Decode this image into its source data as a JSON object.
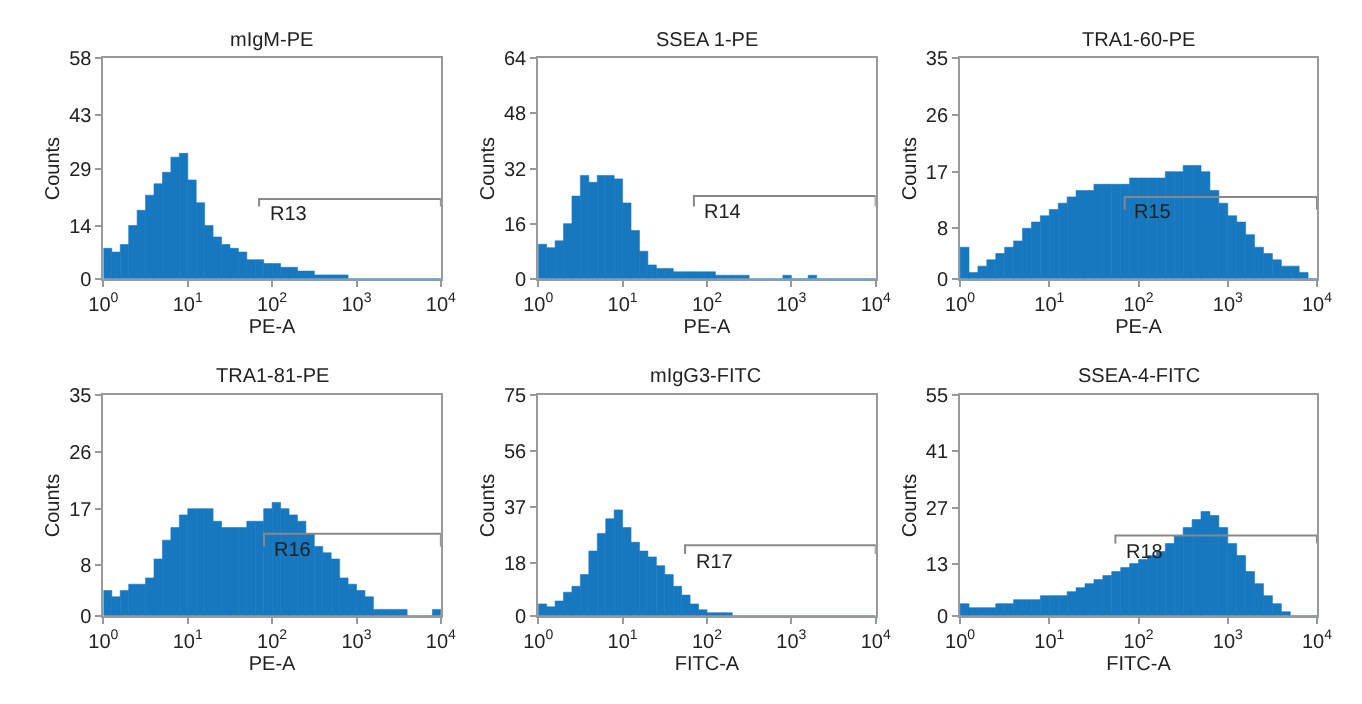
{
  "chart_data": [
    {
      "type": "histogram",
      "title": "mIgM-PE",
      "xlabel": "PE-A",
      "ylabel": "Counts",
      "color": "#1777bf",
      "log": "x",
      "xlim": [
        1,
        10000
      ],
      "xticks": [
        {
          "value": 1,
          "label": "10$^{0}$"
        },
        {
          "value": 10,
          "label": "10$^{1}$"
        },
        {
          "value": 100,
          "label": "10$^{2}$"
        },
        {
          "value": 1000,
          "label": "10$^{3}$"
        },
        {
          "value": 10000,
          "label": "10$^{4}$"
        }
      ],
      "ylim": [
        0,
        58
      ],
      "yticks": [
        0,
        14,
        29,
        43,
        58
      ],
      "bins": [
        1,
        1.259,
        1.585,
        1.995,
        2.512,
        3.162,
        3.981,
        5.012,
        6.31,
        7.943,
        10,
        12.59,
        15.85,
        19.95,
        25.12,
        31.62,
        39.81,
        50.12,
        63.1,
        79.43,
        100,
        125.9,
        158.5,
        199.5,
        251.2,
        316.2,
        398.1,
        501.2,
        631,
        794.3,
        1000,
        1259,
        1585,
        1995,
        2512,
        3162,
        3981,
        5012,
        6310,
        7943,
        10000
      ],
      "values": [
        8,
        7,
        9,
        14,
        18,
        22,
        25,
        28,
        32,
        33,
        26,
        20,
        14,
        11,
        9,
        8,
        7,
        5,
        5,
        4,
        4,
        3,
        3,
        2,
        2,
        1,
        1,
        1,
        1,
        0,
        0,
        0,
        0,
        0,
        0,
        0,
        0,
        0,
        0,
        0
      ],
      "series": [
        {
          "type": "line",
          "name": "R13",
          "color": "#888888",
          "x": [
            70,
            70,
            10000,
            10000
          ],
          "values": [
            19,
            21,
            21,
            19
          ]
        }
      ]
    },
    {
      "type": "histogram",
      "title": "SSEA 1-PE",
      "xlabel": "PE-A",
      "ylabel": "Counts",
      "color": "#1777bf",
      "log": "x",
      "xlim": [
        1,
        10000
      ],
      "xticks": [
        {
          "value": 1,
          "label": "10$^{0}$"
        },
        {
          "value": 10,
          "label": "10$^{1}$"
        },
        {
          "value": 100,
          "label": "10$^{2}$"
        },
        {
          "value": 1000,
          "label": "10$^{3}$"
        },
        {
          "value": 10000,
          "label": "10$^{4}$"
        }
      ],
      "ylim": [
        0,
        64
      ],
      "yticks": [
        0,
        16,
        32,
        48,
        64
      ],
      "bins": [
        1,
        1.259,
        1.585,
        1.995,
        2.512,
        3.162,
        3.981,
        5.012,
        6.31,
        7.943,
        10,
        12.59,
        15.85,
        19.95,
        25.12,
        31.62,
        39.81,
        50.12,
        63.1,
        79.43,
        100,
        125.9,
        158.5,
        199.5,
        251.2,
        316.2,
        398.1,
        501.2,
        631,
        794.3,
        1000,
        1259,
        1585,
        1995,
        2512,
        3162,
        3981,
        5012,
        6310,
        7943,
        10000
      ],
      "values": [
        10,
        9,
        11,
        16,
        24,
        30,
        28,
        30,
        30,
        29,
        22,
        14,
        8,
        4,
        3,
        3,
        2,
        2,
        2,
        2,
        2,
        1,
        1,
        1,
        1,
        0,
        0,
        0,
        0,
        1,
        0,
        0,
        1,
        0,
        0,
        0,
        0,
        0,
        0,
        0
      ],
      "series": [
        {
          "type": "line",
          "name": "R14",
          "color": "#888888",
          "x": [
            70,
            70,
            10000,
            10000
          ],
          "values": [
            21,
            24,
            24,
            21
          ]
        }
      ]
    },
    {
      "type": "histogram",
      "title": "TRA1-60-PE",
      "xlabel": "PE-A",
      "ylabel": "Counts",
      "color": "#1777bf",
      "log": "x",
      "xlim": [
        1,
        10000
      ],
      "xticks": [
        {
          "value": 1,
          "label": "10$^{0}$"
        },
        {
          "value": 10,
          "label": "10$^{1}$"
        },
        {
          "value": 100,
          "label": "10$^{2}$"
        },
        {
          "value": 1000,
          "label": "10$^{3}$"
        },
        {
          "value": 10000,
          "label": "10$^{4}$"
        }
      ],
      "ylim": [
        0,
        35
      ],
      "yticks": [
        0,
        8,
        17,
        26,
        35
      ],
      "bins": [
        1,
        1.259,
        1.585,
        1.995,
        2.512,
        3.162,
        3.981,
        5.012,
        6.31,
        7.943,
        10,
        12.59,
        15.85,
        19.95,
        25.12,
        31.62,
        39.81,
        50.12,
        63.1,
        79.43,
        100,
        125.9,
        158.5,
        199.5,
        251.2,
        316.2,
        398.1,
        501.2,
        631,
        794.3,
        1000,
        1259,
        1585,
        1995,
        2512,
        3162,
        3981,
        5012,
        6310,
        7943,
        10000
      ],
      "values": [
        5,
        1,
        2,
        3,
        4,
        5,
        6,
        8,
        9,
        10,
        11,
        12,
        13,
        14,
        14,
        15,
        15,
        15,
        15,
        16,
        16,
        16,
        16,
        17,
        17,
        18,
        18,
        17,
        14,
        12,
        10,
        9,
        7,
        5,
        4,
        3,
        2,
        2,
        1,
        0
      ],
      "series": [
        {
          "type": "line",
          "name": "R15",
          "color": "#888888",
          "x": [
            70,
            70,
            10000,
            10000
          ],
          "values": [
            11,
            13,
            13,
            11
          ]
        }
      ]
    },
    {
      "type": "histogram",
      "title": "TRA1-81-PE",
      "xlabel": "PE-A",
      "ylabel": "Counts",
      "color": "#1777bf",
      "log": "x",
      "xlim": [
        1,
        10000
      ],
      "xticks": [
        {
          "value": 1,
          "label": "10$^{0}$"
        },
        {
          "value": 10,
          "label": "10$^{1}$"
        },
        {
          "value": 100,
          "label": "10$^{2}$"
        },
        {
          "value": 1000,
          "label": "10$^{3}$"
        },
        {
          "value": 10000,
          "label": "10$^{4}$"
        }
      ],
      "ylim": [
        0,
        35
      ],
      "yticks": [
        0,
        8,
        17,
        26,
        35
      ],
      "bins": [
        1,
        1.259,
        1.585,
        1.995,
        2.512,
        3.162,
        3.981,
        5.012,
        6.31,
        7.943,
        10,
        12.59,
        15.85,
        19.95,
        25.12,
        31.62,
        39.81,
        50.12,
        63.1,
        79.43,
        100,
        125.9,
        158.5,
        199.5,
        251.2,
        316.2,
        398.1,
        501.2,
        631,
        794.3,
        1000,
        1259,
        1585,
        1995,
        2512,
        3162,
        3981,
        5012,
        6310,
        7943,
        10000
      ],
      "values": [
        4,
        3,
        4,
        5,
        5,
        6,
        9,
        12,
        14,
        16,
        17,
        17,
        17,
        15,
        14,
        14,
        14,
        15,
        15,
        17,
        18,
        17,
        16,
        15,
        13,
        11,
        10,
        9,
        6,
        5,
        4,
        3,
        1,
        1,
        1,
        1,
        0,
        0,
        0,
        1
      ],
      "series": [
        {
          "type": "line",
          "name": "R16",
          "color": "#888888",
          "x": [
            80,
            80,
            10000,
            10000
          ],
          "values": [
            11,
            13,
            13,
            11
          ]
        }
      ]
    },
    {
      "type": "histogram",
      "title": "mIgG3-FITC",
      "xlabel": "FITC-A",
      "ylabel": "Counts",
      "color": "#1777bf",
      "log": "x",
      "xlim": [
        1,
        10000
      ],
      "xticks": [
        {
          "value": 1,
          "label": "10$^{0}$"
        },
        {
          "value": 10,
          "label": "10$^{1}$"
        },
        {
          "value": 100,
          "label": "10$^{2}$"
        },
        {
          "value": 1000,
          "label": "10$^{3}$"
        },
        {
          "value": 10000,
          "label": "10$^{4}$"
        }
      ],
      "ylim": [
        0,
        75
      ],
      "yticks": [
        0,
        18,
        37,
        56,
        75
      ],
      "bins": [
        1,
        1.259,
        1.585,
        1.995,
        2.512,
        3.162,
        3.981,
        5.012,
        6.31,
        7.943,
        10,
        12.59,
        15.85,
        19.95,
        25.12,
        31.62,
        39.81,
        50.12,
        63.1,
        79.43,
        100,
        125.9,
        158.5,
        199.5,
        251.2,
        316.2,
        398.1,
        501.2,
        631,
        794.3,
        1000,
        1259,
        1585,
        1995,
        2512,
        3162,
        3981,
        5012,
        6310,
        7943,
        10000
      ],
      "values": [
        4,
        3,
        5,
        8,
        10,
        14,
        22,
        28,
        33,
        36,
        30,
        25,
        22,
        20,
        17,
        14,
        10,
        7,
        4,
        2,
        1,
        1,
        1,
        0,
        0,
        0,
        0,
        0,
        0,
        0,
        0,
        0,
        0,
        0,
        0,
        0,
        0,
        0,
        0,
        0
      ],
      "series": [
        {
          "type": "line",
          "name": "R17",
          "color": "#888888",
          "x": [
            55,
            55,
            10000,
            10000
          ],
          "values": [
            21,
            24,
            24,
            21
          ]
        }
      ]
    },
    {
      "type": "histogram",
      "title": "SSEA-4-FITC",
      "xlabel": "FITC-A",
      "ylabel": "Counts",
      "color": "#1777bf",
      "log": "x",
      "xlim": [
        1,
        10000
      ],
      "xticks": [
        {
          "value": 1,
          "label": "10$^{0}$"
        },
        {
          "value": 10,
          "label": "10$^{1}$"
        },
        {
          "value": 100,
          "label": "10$^{2}$"
        },
        {
          "value": 1000,
          "label": "10$^{3}$"
        },
        {
          "value": 10000,
          "label": "10$^{4}$"
        }
      ],
      "ylim": [
        0,
        55
      ],
      "yticks": [
        0,
        13,
        27,
        41,
        55
      ],
      "bins": [
        1,
        1.259,
        1.585,
        1.995,
        2.512,
        3.162,
        3.981,
        5.012,
        6.31,
        7.943,
        10,
        12.59,
        15.85,
        19.95,
        25.12,
        31.62,
        39.81,
        50.12,
        63.1,
        79.43,
        100,
        125.9,
        158.5,
        199.5,
        251.2,
        316.2,
        398.1,
        501.2,
        631,
        794.3,
        1000,
        1259,
        1585,
        1995,
        2512,
        3162,
        3981,
        5012,
        6310,
        7943,
        10000
      ],
      "values": [
        3,
        2,
        2,
        2,
        3,
        3,
        4,
        4,
        4,
        5,
        5,
        5,
        6,
        7,
        8,
        9,
        10,
        11,
        12,
        13,
        14,
        15,
        16,
        18,
        20,
        22,
        24,
        26,
        25,
        22,
        18,
        15,
        11,
        8,
        5,
        3,
        1,
        0,
        0,
        0
      ],
      "series": [
        {
          "type": "line",
          "name": "R18",
          "color": "#888888",
          "x": [
            55,
            55,
            10000,
            10000
          ],
          "values": [
            18,
            20,
            20,
            18
          ]
        }
      ]
    }
  ]
}
